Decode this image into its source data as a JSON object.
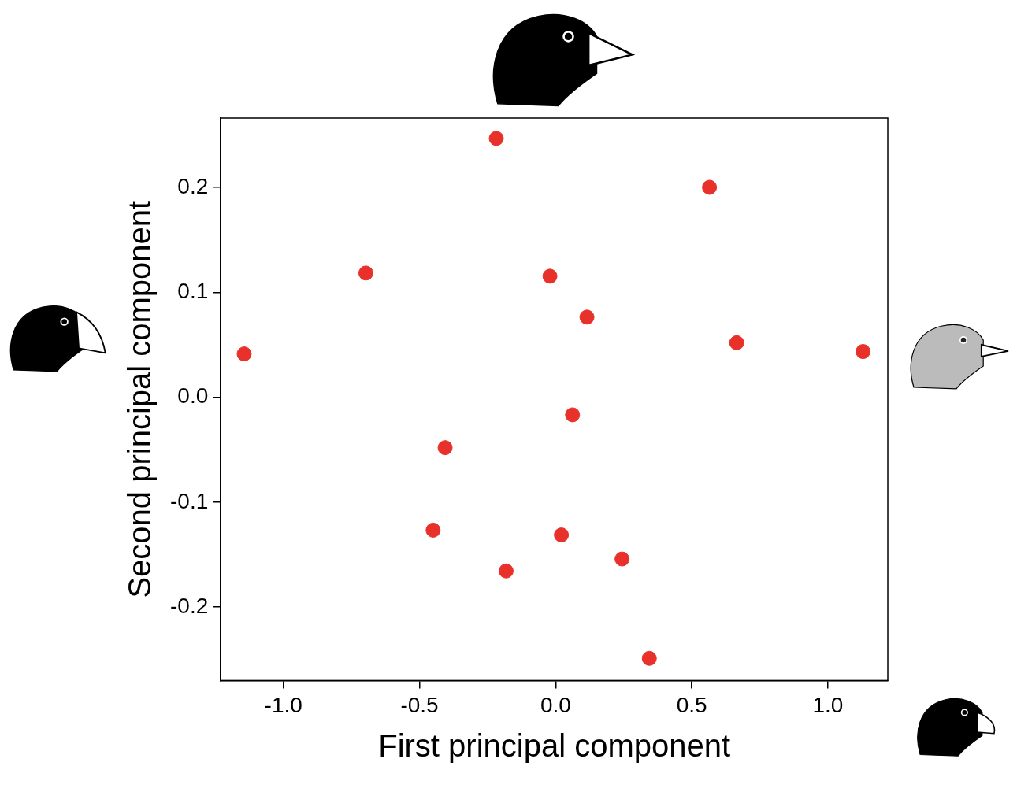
{
  "chart_data": {
    "type": "scatter",
    "x_label": "First principal component",
    "y_label": "Second principal component",
    "x": [
      -0.218,
      0.565,
      -0.697,
      -0.021,
      0.115,
      0.665,
      -1.144,
      1.129,
      0.062,
      -0.406,
      -0.45,
      0.021,
      -0.182,
      0.244,
      0.344
    ],
    "values": [
      0.2466,
      0.2,
      0.1183,
      0.1153,
      0.0763,
      0.0519,
      0.0412,
      0.0435,
      -0.0168,
      -0.0481,
      -0.1267,
      -0.1313,
      -0.1656,
      -0.1542,
      -0.2489
    ],
    "color": "#e8312a",
    "marker": "circle",
    "xlim": [
      -1.23,
      1.22
    ],
    "ylim": [
      -0.27,
      0.266
    ],
    "xticks": [
      {
        "value": -1,
        "label": "-1.0"
      },
      -0.5,
      {
        "value": 0,
        "label": "0.0"
      },
      0.5,
      {
        "value": 1,
        "label": "1.0"
      }
    ],
    "yticks": [
      -0.2,
      -0.1,
      {
        "value": 0,
        "label": "0.0"
      },
      0.1,
      0.2
    ],
    "grid": false
  }
}
